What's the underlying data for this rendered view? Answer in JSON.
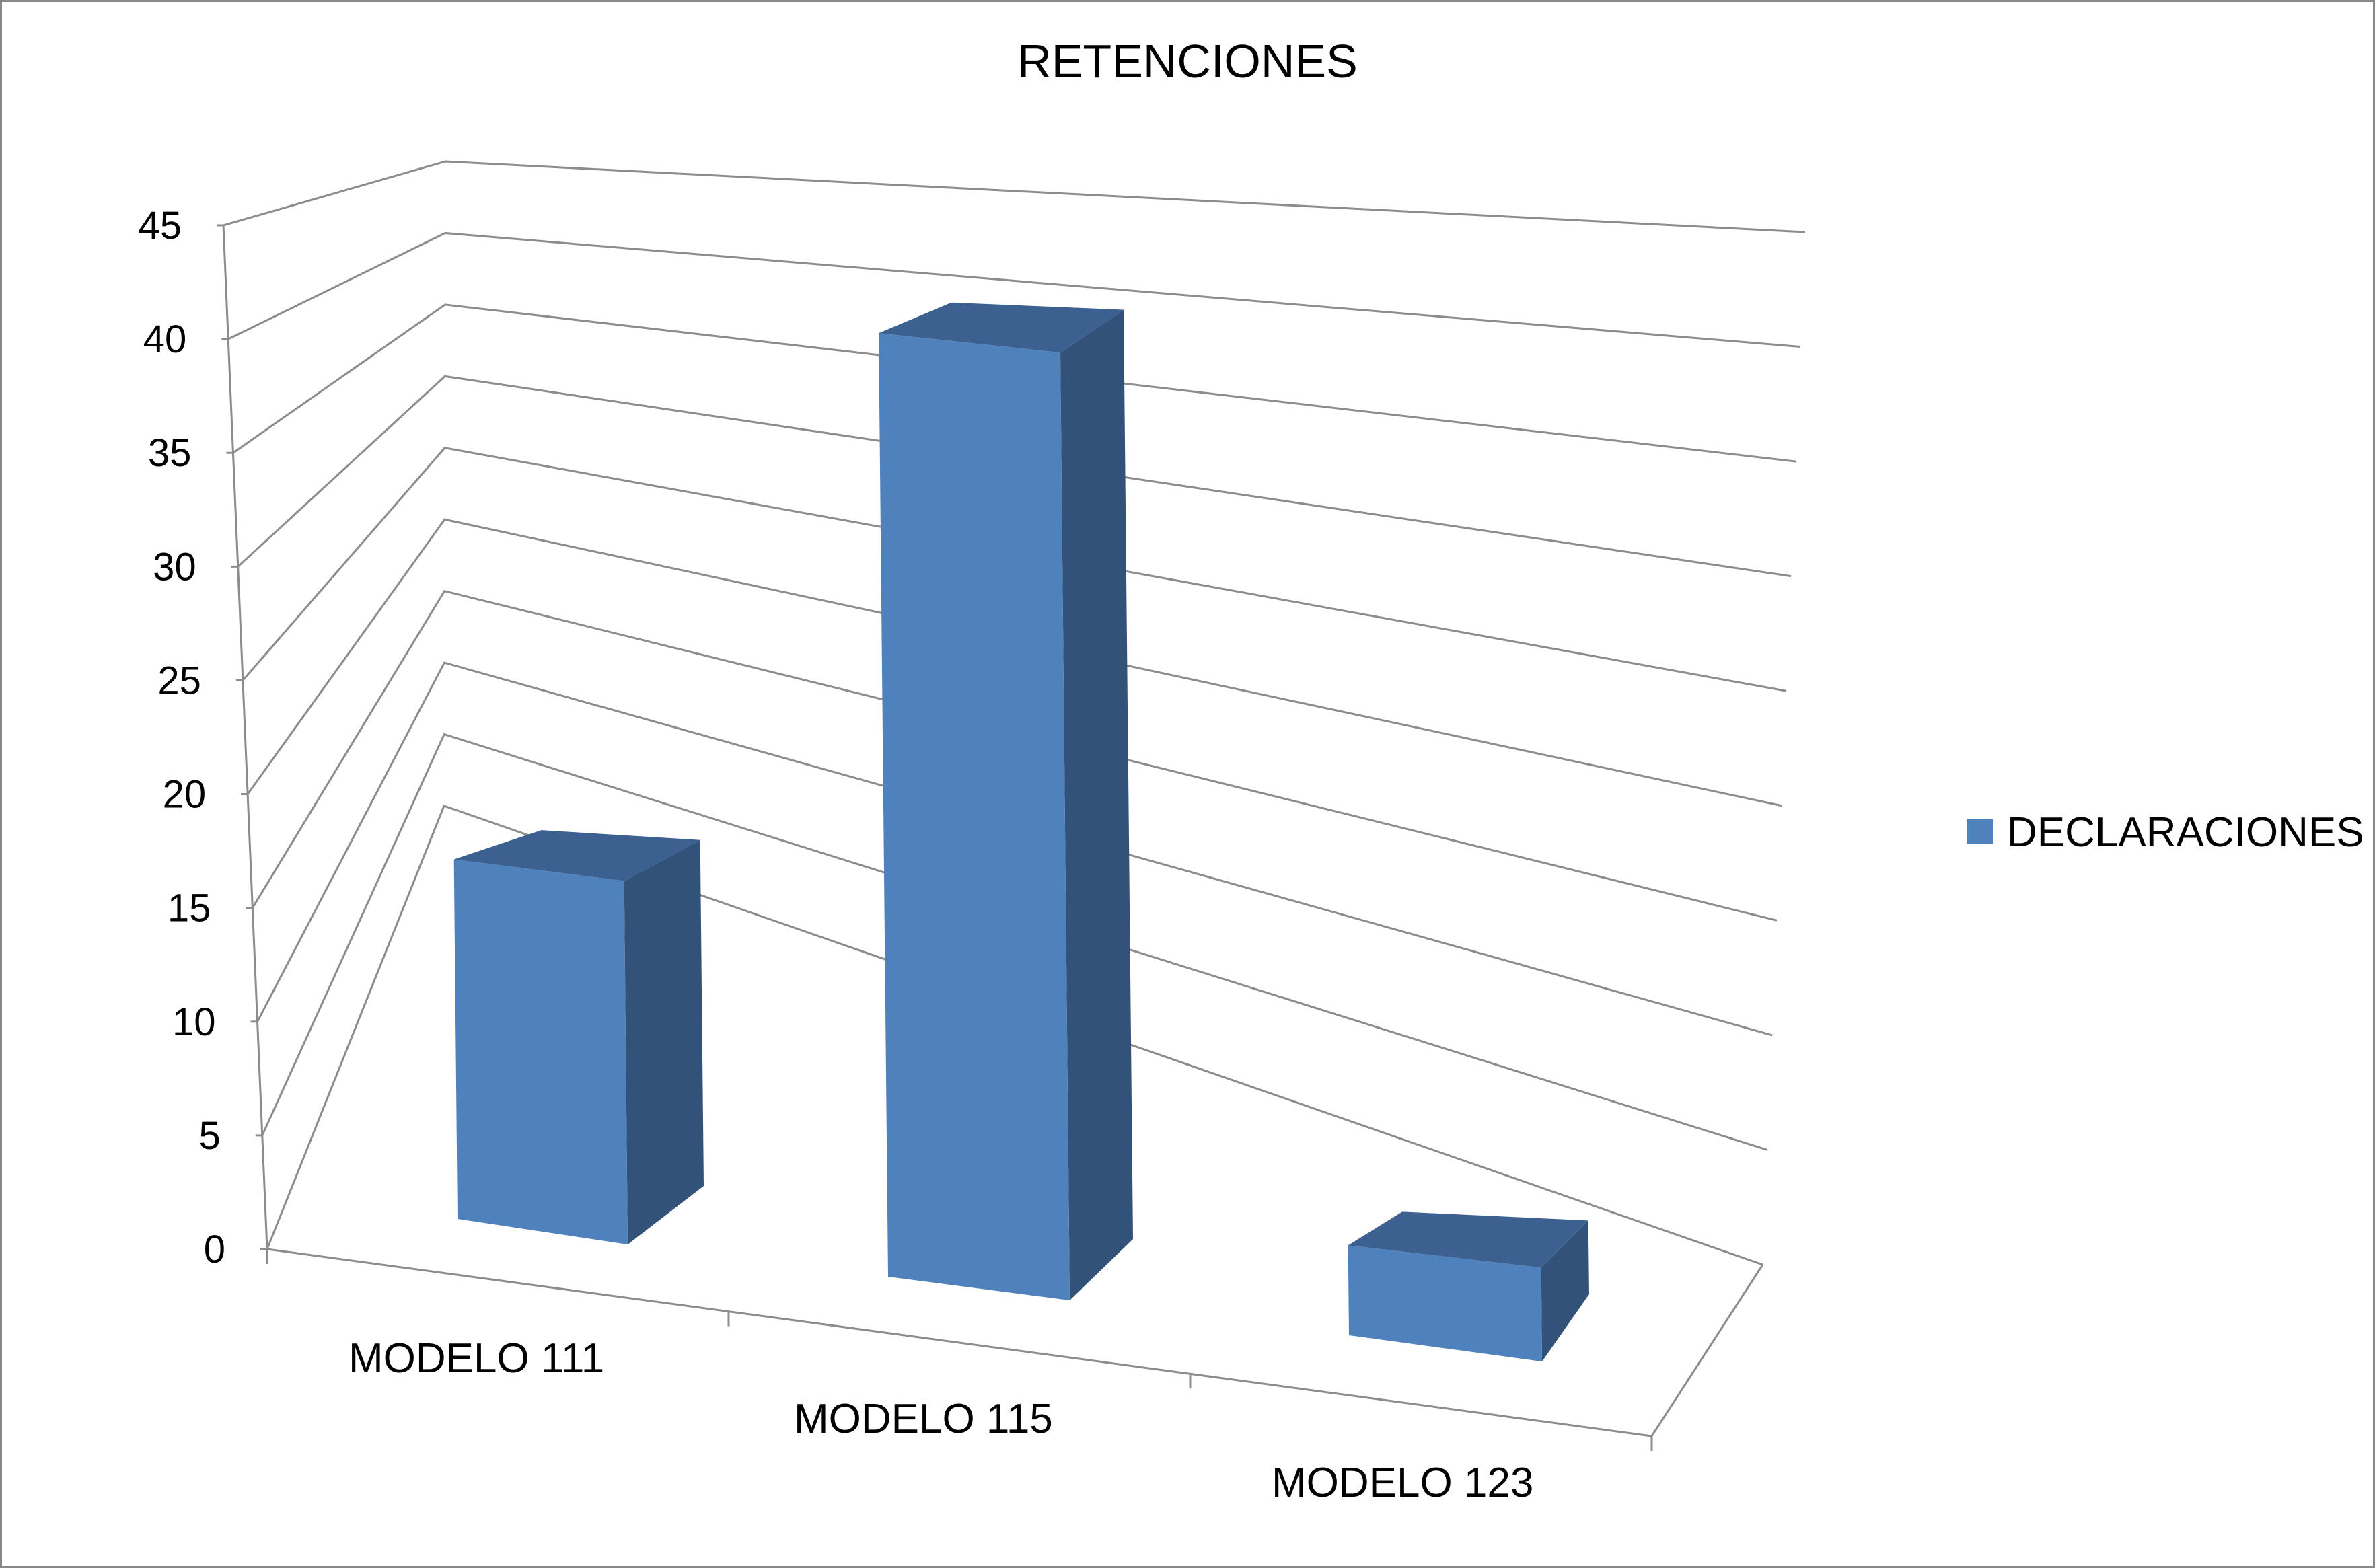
{
  "chart_data": {
    "type": "bar",
    "title": "RETENCIONES",
    "categories": [
      "MODELO 111",
      "MODELO 115",
      "MODELO 123"
    ],
    "series": [
      {
        "name": "DECLARACIONES",
        "values": [
          16,
          42,
          4
        ]
      }
    ],
    "ylim": [
      0,
      45
    ],
    "yticks": [
      0,
      5,
      10,
      15,
      20,
      25,
      30,
      35,
      40,
      45
    ],
    "grid": true,
    "legend_position": "right",
    "colors": {
      "front": "#4f81bd",
      "top": "#3c6191",
      "side": "#32527a",
      "border": "#888888"
    }
  }
}
